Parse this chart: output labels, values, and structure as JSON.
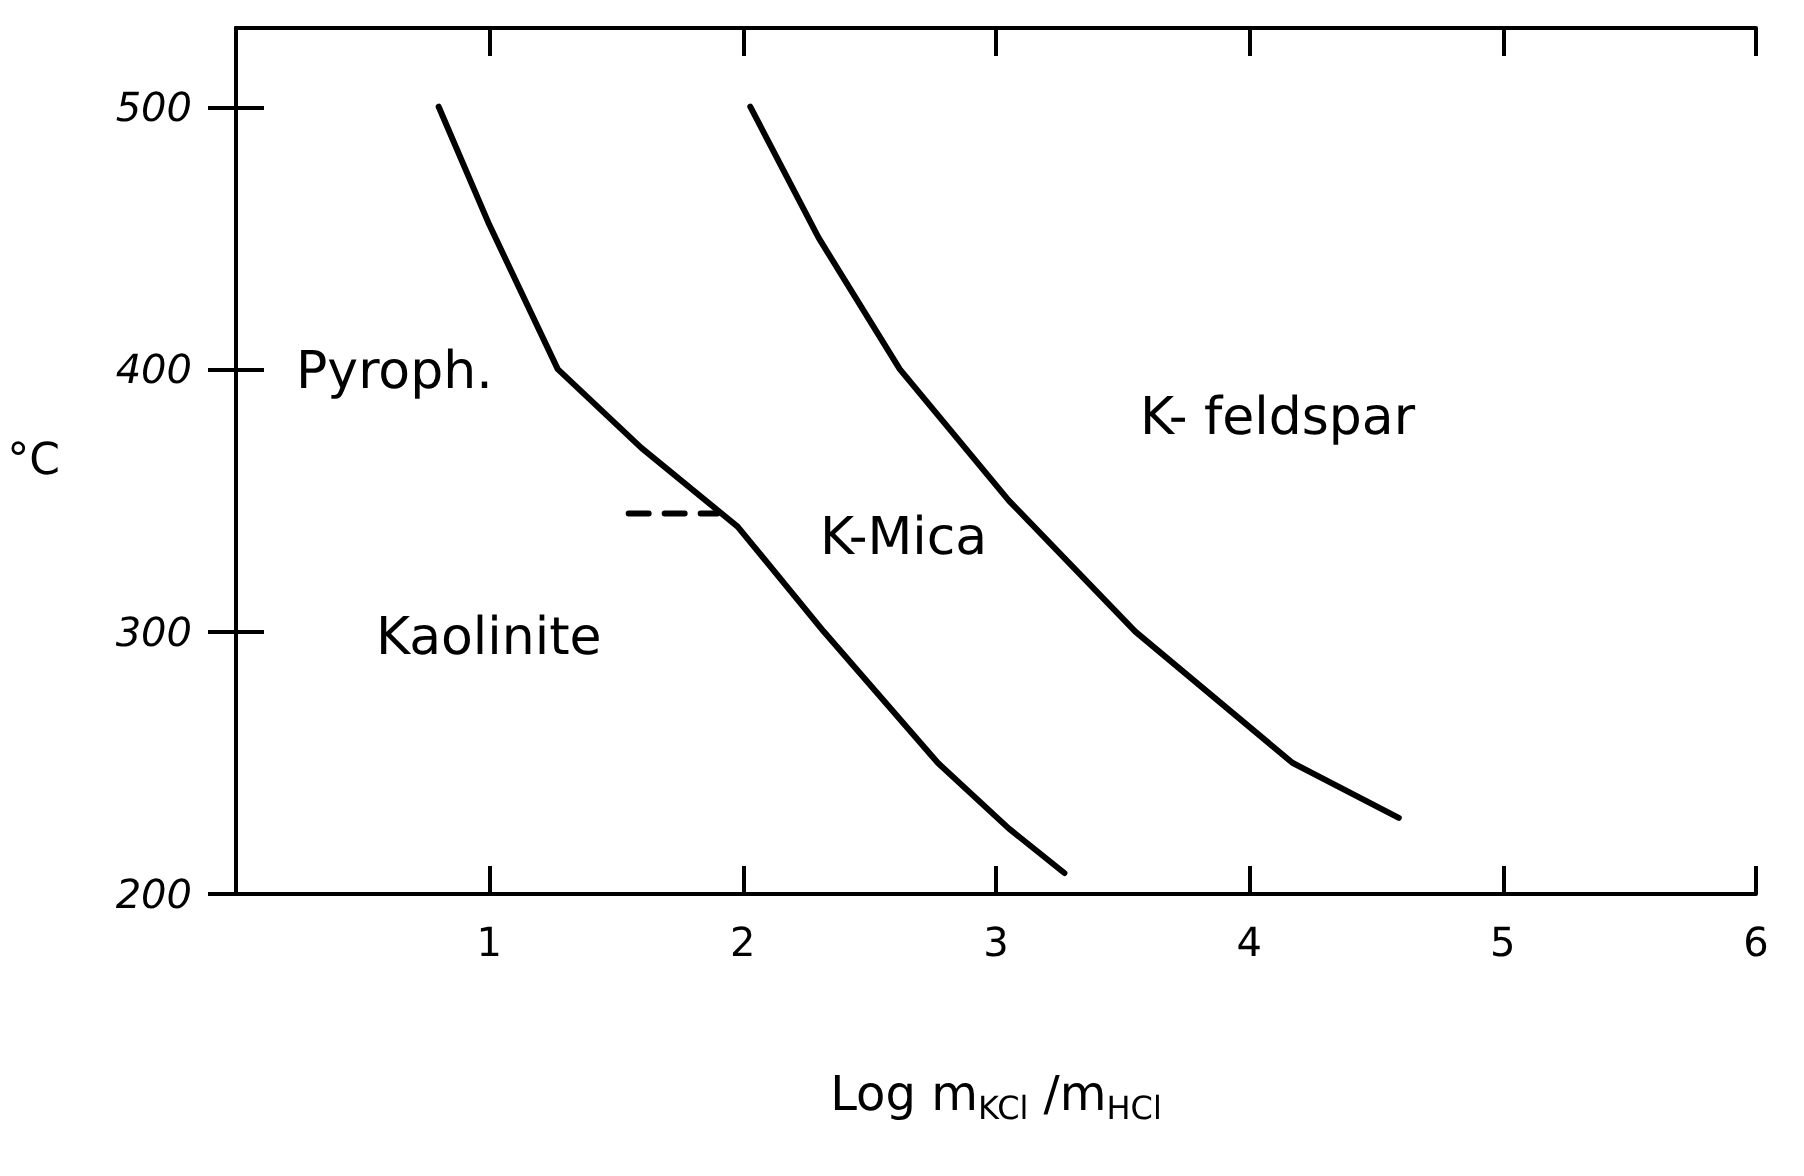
{
  "chart_data": {
    "type": "line",
    "xlabel": "Log m$_{KCl}$ /m$_{HCl}$",
    "ylabel": "°C",
    "xlim": [
      0,
      6
    ],
    "xticks": [
      1,
      2,
      3,
      4,
      5,
      6
    ],
    "ylim": [
      200,
      530
    ],
    "yticks": [
      200,
      300,
      400,
      500
    ],
    "grid": false,
    "marker": "none",
    "line_style": "solid",
    "series": [
      {
        "color": "#000000",
        "x": [
          0.8,
          1.0,
          1.27,
          1.6,
          1.98,
          2.32,
          2.77,
          3.05,
          3.27
        ],
        "values": [
          500,
          455,
          400,
          370,
          340,
          300,
          250,
          225,
          208
        ]
      },
      {
        "color": "#000000",
        "x": [
          2.03,
          2.3,
          2.62,
          3.05,
          3.55,
          4.17,
          4.59
        ],
        "values": [
          500,
          450,
          400,
          350,
          300,
          250,
          229
        ]
      },
      {
        "color": "#000000",
        "line_style": "dashed",
        "x": [
          1.55,
          1.9
        ],
        "values": [
          345,
          345
        ]
      }
    ],
    "annotations": [
      "Pyroph.",
      "K-Mica",
      "K- feldspar",
      "Kaolinite"
    ]
  }
}
